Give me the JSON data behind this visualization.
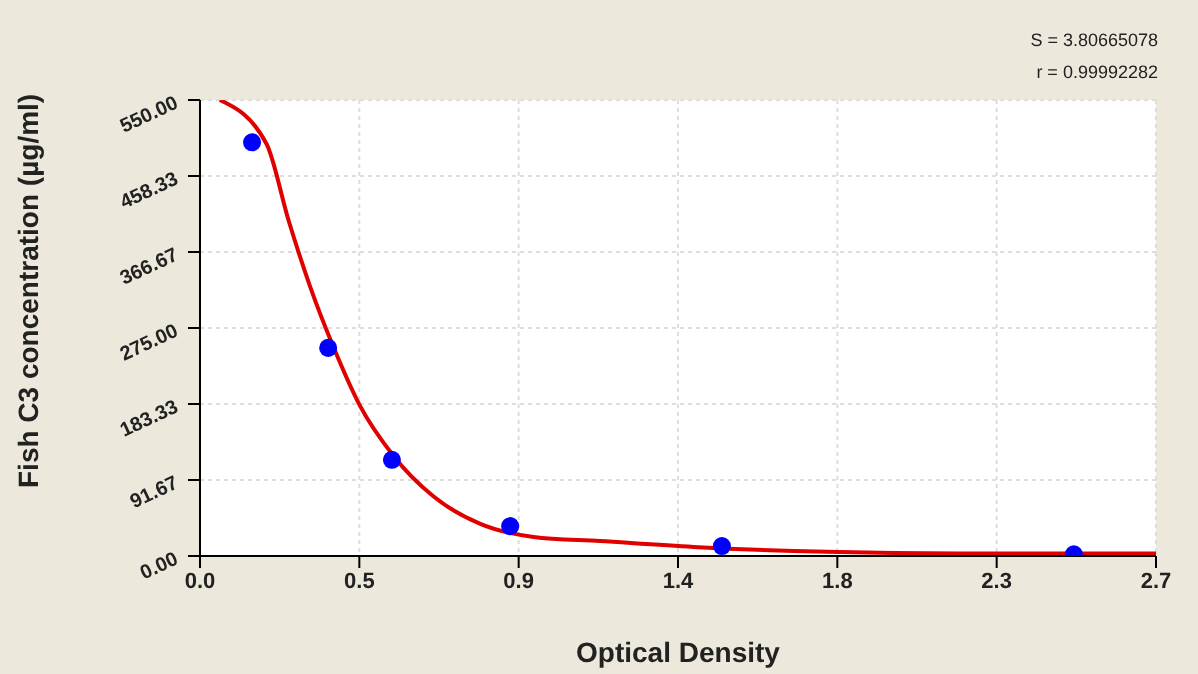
{
  "chart_data": {
    "type": "scatter",
    "xlabel": "Optical Density",
    "ylabel": "Fish C3 concentration (µg/ml)",
    "annotations": [
      "S = 3.80665078",
      "r = 0.99992282"
    ],
    "series": [
      {
        "color": "#0000ff",
        "marker": "circle",
        "x": [
          0.147,
          0.362,
          0.542,
          0.876,
          1.474,
          2.468
        ],
        "values": [
          499,
          251,
          116,
          36,
          12,
          2
        ]
      },
      {
        "type": "line",
        "color": "#e00000",
        "marker": "none",
        "line_style": "solid",
        "x": [
          0.056,
          0.188,
          0.25,
          0.311,
          0.377,
          0.452,
          0.546,
          0.659,
          0.79,
          0.942,
          1.13,
          1.394,
          1.77,
          2.15,
          2.7
        ],
        "values": [
          550,
          497,
          405,
          325,
          252,
          181,
          121,
          72,
          39,
          23,
          18,
          11,
          5,
          3,
          3
        ]
      }
    ],
    "xlim": [
      0,
      2.7
    ],
    "xticks": [
      {
        "value": 0,
        "label": "0.0"
      },
      {
        "value": 0.45,
        "label": "0.5"
      },
      {
        "value": 0.9,
        "label": "0.9"
      },
      {
        "value": 1.35,
        "label": "1.4"
      },
      {
        "value": 1.8,
        "label": "1.8"
      },
      {
        "value": 2.25,
        "label": "2.3"
      },
      {
        "value": 2.7,
        "label": "2.7"
      }
    ],
    "ylim": [
      0,
      550
    ],
    "yticks": [
      {
        "value": 0,
        "label": "0.00"
      },
      {
        "value": 91.67,
        "label": "91.67"
      },
      {
        "value": 183.33,
        "label": "183.33"
      },
      {
        "value": 275,
        "label": "275.00"
      },
      {
        "value": 366.67,
        "label": "366.67"
      },
      {
        "value": 458.33,
        "label": "458.33"
      },
      {
        "value": 550,
        "label": "550.00"
      }
    ],
    "grid": true
  }
}
